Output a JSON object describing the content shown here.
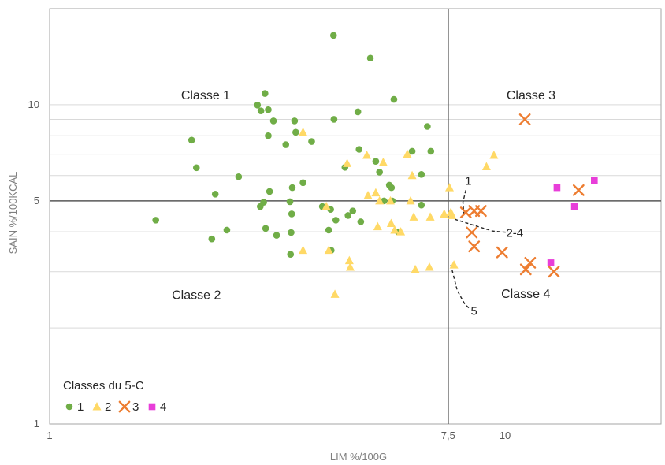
{
  "chart_data": {
    "type": "scatter",
    "x_scale": "log",
    "y_scale": "log",
    "xlabel": "LIM %/100G",
    "ylabel": "SAIN %/100KCAL",
    "xlim": [
      1,
      22
    ],
    "ylim": [
      1,
      20
    ],
    "x_ticks": [
      {
        "value": 1,
        "label": "1"
      },
      {
        "value": 7.5,
        "label": "7,5"
      },
      {
        "value": 10,
        "label": "10"
      }
    ],
    "y_ticks": [
      {
        "value": 1,
        "label": "1"
      },
      {
        "value": 5,
        "label": "5"
      },
      {
        "value": 10,
        "label": "10"
      }
    ],
    "grid": {
      "horizontal": [
        2,
        3,
        4,
        5,
        6,
        7,
        8,
        9,
        10,
        20
      ],
      "color": "#d9d9d9"
    },
    "thresholds": {
      "x": 7.5,
      "y": 5
    },
    "quadrant_labels": [
      {
        "text": "Classe 1",
        "x": 2.2,
        "y": 10.4
      },
      {
        "text": "Classe 3",
        "x": 11.4,
        "y": 10.4
      },
      {
        "text": "Classe 2",
        "x": 2.1,
        "y": 2.46
      },
      {
        "text": "Classe 4",
        "x": 11.1,
        "y": 2.48
      }
    ],
    "annotations": [
      {
        "text": "1",
        "x": 8.3,
        "y": 5.77,
        "line": [
          [
            8.2,
            5.4
          ],
          [
            8.08,
            4.95
          ],
          [
            8.12,
            4.55
          ]
        ]
      },
      {
        "text": "2-4",
        "x": 10.5,
        "y": 3.97,
        "line": [
          [
            7.75,
            4.38
          ],
          [
            8.6,
            4.18
          ],
          [
            9.4,
            4.02
          ],
          [
            10.15,
            3.98
          ]
        ]
      },
      {
        "text": "5",
        "x": 8.55,
        "y": 2.26,
        "line": [
          [
            7.6,
            3.15
          ],
          [
            7.85,
            2.62
          ],
          [
            8.15,
            2.38
          ],
          [
            8.35,
            2.3
          ]
        ]
      }
    ],
    "legend": {
      "title": "Classes du 5-C",
      "position": "bottom-left",
      "entries": [
        "1",
        "2",
        "3",
        "4"
      ]
    },
    "series": [
      {
        "name": "1",
        "marker": "circle",
        "color": "#70ad47",
        "points": [
          [
            1.71,
            4.35
          ],
          [
            2.05,
            7.75
          ],
          [
            2.1,
            6.35
          ],
          [
            2.27,
            3.8
          ],
          [
            2.31,
            5.25
          ],
          [
            2.45,
            4.05
          ],
          [
            2.6,
            5.95
          ],
          [
            2.86,
            9.98
          ],
          [
            2.9,
            4.8
          ],
          [
            2.91,
            9.57
          ],
          [
            2.95,
            4.95
          ],
          [
            2.97,
            10.85
          ],
          [
            2.98,
            4.1
          ],
          [
            3.02,
            9.65
          ],
          [
            3.02,
            8.0
          ],
          [
            3.04,
            5.35
          ],
          [
            3.1,
            8.9
          ],
          [
            3.15,
            3.9
          ],
          [
            3.3,
            7.5
          ],
          [
            3.37,
            4.97
          ],
          [
            3.38,
            3.4
          ],
          [
            3.39,
            3.98
          ],
          [
            3.4,
            4.55
          ],
          [
            3.41,
            5.5
          ],
          [
            3.45,
            8.9
          ],
          [
            3.47,
            8.2
          ],
          [
            3.6,
            5.7
          ],
          [
            3.97,
            4.8
          ],
          [
            4.1,
            4.05
          ],
          [
            4.14,
            4.7
          ],
          [
            4.15,
            3.5
          ],
          [
            4.21,
            9.0
          ],
          [
            4.2,
            16.5
          ],
          [
            4.25,
            4.35
          ],
          [
            4.45,
            6.37
          ],
          [
            4.52,
            4.5
          ],
          [
            4.63,
            4.65
          ],
          [
            4.75,
            9.5
          ],
          [
            4.78,
            7.25
          ],
          [
            4.82,
            4.3
          ],
          [
            5.06,
            14.0
          ],
          [
            5.2,
            6.65
          ],
          [
            5.3,
            6.15
          ],
          [
            5.42,
            5.0
          ],
          [
            5.57,
            5.6
          ],
          [
            5.63,
            5.5
          ],
          [
            5.65,
            5.0
          ],
          [
            5.7,
            10.4
          ],
          [
            5.82,
            4.0
          ],
          [
            6.25,
            7.15
          ],
          [
            6.55,
            6.05
          ],
          [
            6.55,
            4.85
          ],
          [
            6.75,
            8.55
          ],
          [
            6.87,
            7.15
          ],
          [
            3.76,
            7.67
          ]
        ]
      },
      {
        "name": "2",
        "marker": "triangle",
        "color": "#ffd966",
        "points": [
          [
            3.6,
            8.2
          ],
          [
            3.6,
            3.5
          ],
          [
            4.05,
            4.8
          ],
          [
            4.1,
            3.5
          ],
          [
            4.23,
            2.55
          ],
          [
            4.5,
            6.55
          ],
          [
            4.55,
            3.25
          ],
          [
            4.57,
            3.1
          ],
          [
            4.97,
            6.95
          ],
          [
            5.2,
            5.3
          ],
          [
            5.25,
            4.15
          ],
          [
            5.3,
            5.0
          ],
          [
            5.4,
            6.6
          ],
          [
            5.6,
            5.0
          ],
          [
            5.62,
            4.25
          ],
          [
            5.72,
            4.05
          ],
          [
            5.9,
            4.0
          ],
          [
            6.1,
            7.0
          ],
          [
            6.2,
            5.0
          ],
          [
            6.25,
            6.0
          ],
          [
            6.3,
            4.45
          ],
          [
            6.35,
            3.05
          ],
          [
            6.82,
            3.1
          ],
          [
            6.85,
            4.45
          ],
          [
            7.55,
            5.5
          ],
          [
            7.6,
            4.6
          ],
          [
            7.65,
            4.5
          ],
          [
            7.72,
            3.15
          ],
          [
            9.1,
            6.4
          ],
          [
            9.45,
            6.95
          ],
          [
            5.0,
            5.2
          ],
          [
            7.35,
            4.55
          ]
        ]
      },
      {
        "name": "3",
        "marker": "x",
        "color": "#ed7d31",
        "points": [
          [
            8.2,
            4.6
          ],
          [
            8.55,
            4.65
          ],
          [
            8.85,
            4.65
          ],
          [
            8.45,
            3.98
          ],
          [
            8.55,
            3.6
          ],
          [
            9.85,
            3.45
          ],
          [
            11.05,
            9.0
          ],
          [
            11.35,
            3.2
          ],
          [
            11.1,
            3.05
          ],
          [
            12.8,
            3.0
          ],
          [
            14.5,
            5.4
          ]
        ]
      },
      {
        "name": "4",
        "marker": "square",
        "color": "#e83ed9",
        "points": [
          [
            13.0,
            5.5
          ],
          [
            14.2,
            4.8
          ],
          [
            15.7,
            5.8
          ],
          [
            12.6,
            3.2
          ]
        ]
      }
    ]
  }
}
